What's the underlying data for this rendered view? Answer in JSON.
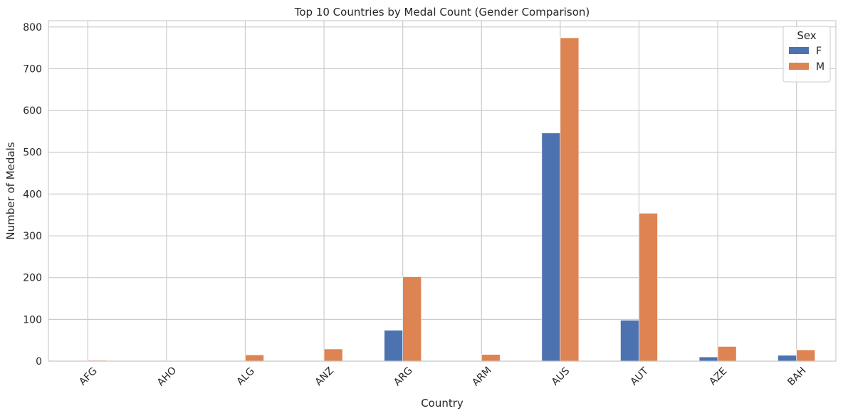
{
  "chart_data": {
    "type": "bar",
    "title": "Top 10 Countries by Medal Count (Gender Comparison)",
    "xlabel": "Country",
    "ylabel": "Number of Medals",
    "categories": [
      "AFG",
      "AHO",
      "ALG",
      "ANZ",
      "ARG",
      "ARM",
      "AUS",
      "AUT",
      "AZE",
      "BAH"
    ],
    "series": [
      {
        "name": "F",
        "color": "#4c72b0",
        "values": [
          0,
          0,
          0,
          0,
          74,
          0,
          546,
          98,
          10,
          14
        ]
      },
      {
        "name": "M",
        "color": "#dd8452",
        "values": [
          2,
          1,
          15,
          29,
          202,
          16,
          774,
          354,
          35,
          27
        ]
      }
    ],
    "ylim": [
      0,
      815
    ],
    "yticks": [
      0,
      100,
      200,
      300,
      400,
      500,
      600,
      700,
      800
    ],
    "legend": {
      "title": "Sex",
      "placement": "top-right"
    },
    "grid": true
  }
}
